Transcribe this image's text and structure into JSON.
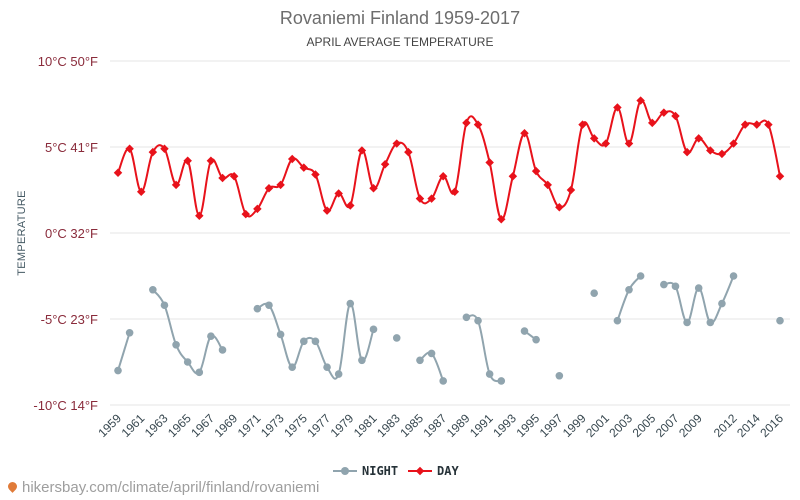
{
  "chart_data": {
    "type": "line",
    "title": "Rovaniemi Finland 1959-2017",
    "subtitle": "APRIL AVERAGE TEMPERATURE",
    "ylabel": "TEMPERATURE",
    "ylim": [
      -10,
      10
    ],
    "y_ticks": [
      {
        "value": 10,
        "label": "10°C 50°F"
      },
      {
        "value": 5,
        "label": "5°C 41°F"
      },
      {
        "value": 0,
        "label": "0°C 32°F"
      },
      {
        "value": -5,
        "label": "-5°C 23°F"
      },
      {
        "value": -10,
        "label": "-10°C 14°F"
      }
    ],
    "x_ticks": [
      1959,
      1961,
      1963,
      1965,
      1967,
      1969,
      1971,
      1973,
      1975,
      1977,
      1979,
      1981,
      1983,
      1985,
      1987,
      1989,
      1991,
      1993,
      1995,
      1997,
      1999,
      2001,
      2003,
      2005,
      2007,
      2009,
      2012,
      2014,
      2016
    ],
    "x": [
      1959,
      1960,
      1961,
      1962,
      1963,
      1964,
      1965,
      1966,
      1967,
      1968,
      1969,
      1970,
      1971,
      1972,
      1973,
      1974,
      1975,
      1976,
      1977,
      1978,
      1979,
      1980,
      1981,
      1982,
      1983,
      1984,
      1985,
      1986,
      1987,
      1988,
      1989,
      1990,
      1991,
      1992,
      1993,
      1994,
      1995,
      1996,
      1997,
      1998,
      1999,
      2000,
      2001,
      2002,
      2003,
      2004,
      2005,
      2006,
      2007,
      2008,
      2009,
      2010,
      2011,
      2012,
      2013,
      2014,
      2015,
      2016
    ],
    "series": [
      {
        "name": "NIGHT",
        "color": "#90a4ae",
        "values": [
          -8.0,
          -5.8,
          null,
          -3.3,
          -4.2,
          -6.5,
          -7.5,
          -8.1,
          -6.0,
          -6.8,
          null,
          null,
          -4.4,
          -4.2,
          -5.9,
          -7.8,
          -6.3,
          -6.3,
          -7.8,
          -8.2,
          -4.1,
          -7.4,
          -5.6,
          null,
          -6.1,
          null,
          -7.4,
          -7.0,
          -8.6,
          null,
          -4.9,
          -5.1,
          -8.2,
          -8.6,
          null,
          -5.7,
          -6.2,
          null,
          -8.3,
          null,
          null,
          -3.5,
          null,
          -5.1,
          -3.3,
          -2.5,
          null,
          -3.0,
          -3.1,
          -5.2,
          -3.2,
          -5.2,
          -4.1,
          -2.5,
          null,
          null,
          null,
          -5.1
        ]
      },
      {
        "name": "DAY",
        "color": "#e8121b",
        "values": [
          3.5,
          4.9,
          2.4,
          4.7,
          4.9,
          2.8,
          4.2,
          1.0,
          4.2,
          3.2,
          3.3,
          1.1,
          1.4,
          2.6,
          2.8,
          4.3,
          3.8,
          3.4,
          1.3,
          2.3,
          1.6,
          4.8,
          2.6,
          4.0,
          5.2,
          4.7,
          2.0,
          2.0,
          3.3,
          2.4,
          6.4,
          6.3,
          4.1,
          0.8,
          3.3,
          5.8,
          3.6,
          2.8,
          1.5,
          2.5,
          6.3,
          5.5,
          5.2,
          7.3,
          5.2,
          7.7,
          6.4,
          7.0,
          6.8,
          4.7,
          5.5,
          4.8,
          4.6,
          5.2,
          6.3,
          6.3,
          6.3,
          3.3
        ]
      }
    ],
    "legend": {
      "position": "bottom-center"
    },
    "grid": true
  },
  "footer": {
    "url": "hikersbay.com/climate/april/finland/rovaniemi"
  }
}
